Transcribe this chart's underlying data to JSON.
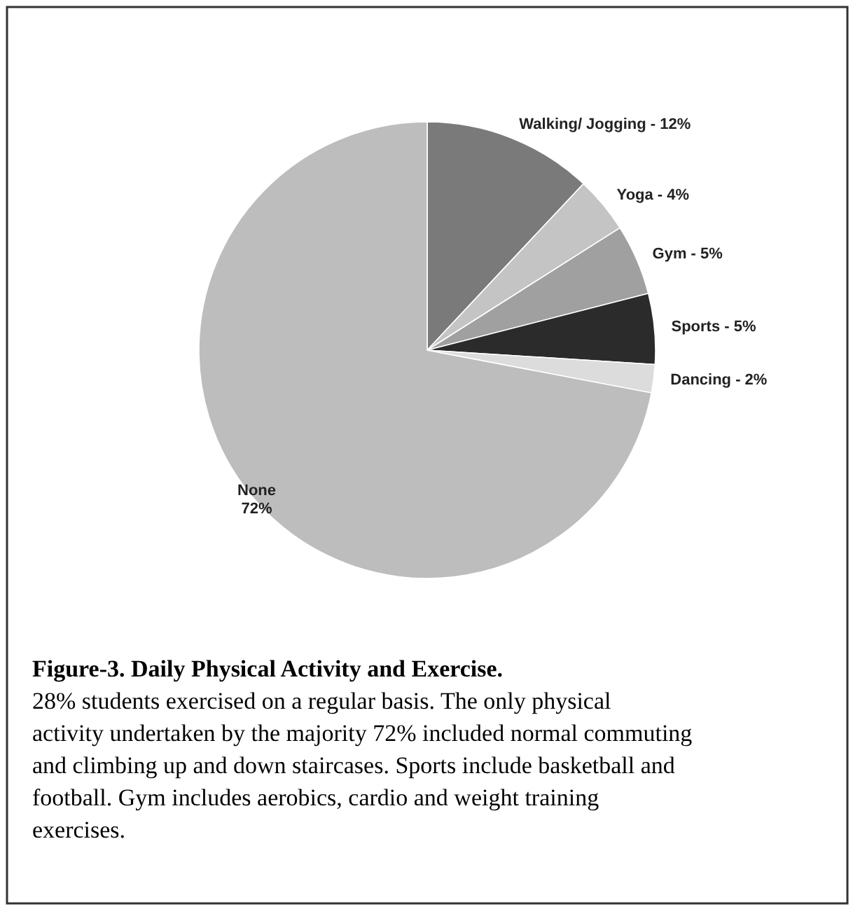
{
  "chart_data": {
    "type": "pie",
    "categories": [
      "Walking/ Jogging",
      "Yoga",
      "Gym",
      "Sports",
      "Dancing",
      "None"
    ],
    "values": [
      12,
      4,
      5,
      5,
      2,
      72
    ],
    "value_labels": [
      "12%",
      "4%",
      "5%",
      "5%",
      "2%",
      "72%"
    ],
    "colors": [
      "#7a7a7a",
      "#c4c4c4",
      "#a0a0a0",
      "#2b2b2b",
      "#dcdcdc",
      "#bdbdbd"
    ],
    "title": "Figure-3. Daily Physical Activity and Exercise.",
    "annotations": [
      "28% students exercised on a regular basis. The only physical activity undertaken by the majority 72% included normal commuting and climbing up and down staircases. Sports include basketball and football. Gym includes aerobics, cardio and weight training exercises."
    ],
    "legend": false
  }
}
